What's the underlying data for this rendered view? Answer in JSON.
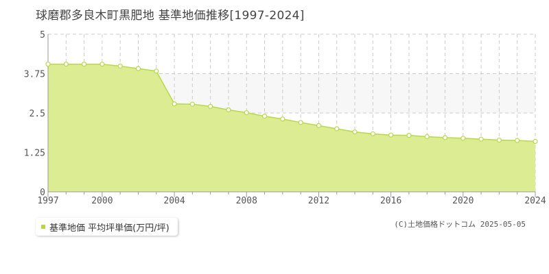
{
  "title": "球磨郡多良木町黒肥地 基準地価推移[1997-2024]",
  "legend": {
    "label": "基準地価 平均坪単価(万円/坪)"
  },
  "copyright": "(C)土地価格ドットコム 2025-05-05",
  "colors": {
    "fill": "#dbec93",
    "line": "#b8d84a",
    "point_fill": "#ffffff",
    "point_stroke": "#b8d84a",
    "grid": "#cccccc",
    "band": "#f7f7f7",
    "axis": "#999999"
  },
  "chart_data": {
    "type": "area",
    "title": "球磨郡多良木町黒肥地 基準地価推移[1997-2024]",
    "xlabel": "",
    "ylabel": "",
    "xlim": [
      1997,
      2024
    ],
    "ylim": [
      0,
      5
    ],
    "x_ticks": [
      1997,
      2000,
      2004,
      2008,
      2012,
      2016,
      2020,
      2024
    ],
    "y_ticks": [
      0,
      1.25,
      2.5,
      3.75,
      5
    ],
    "y_tick_labels": [
      "0",
      "1.25",
      "2.5",
      "3.75",
      "5"
    ],
    "grid": true,
    "legend_position": "bottom-left",
    "series": [
      {
        "name": "基準地価 平均坪単価(万円/坪)",
        "x": [
          1997,
          1998,
          1999,
          2000,
          2001,
          2002,
          2003,
          2004,
          2005,
          2006,
          2007,
          2008,
          2009,
          2010,
          2011,
          2012,
          2013,
          2014,
          2015,
          2016,
          2017,
          2018,
          2019,
          2020,
          2021,
          2022,
          2023,
          2024
        ],
        "values": [
          4.05,
          4.05,
          4.05,
          4.05,
          3.99,
          3.91,
          3.83,
          2.79,
          2.78,
          2.71,
          2.6,
          2.51,
          2.4,
          2.31,
          2.2,
          2.1,
          2.0,
          1.9,
          1.84,
          1.8,
          1.79,
          1.75,
          1.72,
          1.7,
          1.67,
          1.64,
          1.63,
          1.6
        ]
      }
    ]
  }
}
